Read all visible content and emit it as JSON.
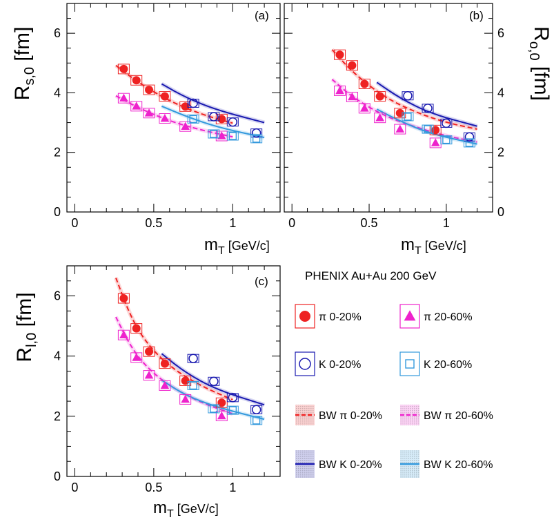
{
  "colors": {
    "pi_central": "#ee2222",
    "pi_peripheral": "#ee22cc",
    "k_central": "#1a1ab0",
    "k_peripheral": "#3399dd"
  },
  "legend": {
    "title": "PHENIX Au+Au 200 GeV",
    "entries": [
      {
        "label": "π  0-20%",
        "marker": "filled-circle",
        "color": "#ee2222"
      },
      {
        "label": "π 20-60%",
        "marker": "filled-triangle",
        "color": "#ee22cc"
      },
      {
        "label": "K  0-20%",
        "marker": "open-circle",
        "color": "#1a1ab0"
      },
      {
        "label": "K 20-60%",
        "marker": "open-square",
        "color": "#3399dd"
      },
      {
        "label": "BW π  0-20%",
        "marker": "dashed-band",
        "color": "#ee2222"
      },
      {
        "label": "BW π 20-60%",
        "marker": "dashed-band",
        "color": "#ee22cc"
      },
      {
        "label": "BW K  0-20%",
        "marker": "solid-band",
        "color": "#1a1ab0"
      },
      {
        "label": "BW K 20-60%",
        "marker": "solid-band",
        "color": "#3399dd"
      }
    ]
  },
  "chart_data": [
    {
      "type": "scatter",
      "panel_label": "(a)",
      "ylabel_main": "R",
      "ylabel_sub": "s,0",
      "ylabel_unit": " [fm]",
      "xlabel_main": "m",
      "xlabel_sub": "T",
      "xlabel_unit": "  [GeV/c]",
      "xlim": [
        -0.05,
        1.3
      ],
      "ylim": [
        0,
        7
      ],
      "xticks": [
        "0",
        "0.5",
        "1"
      ],
      "yticks": [
        "0",
        "2",
        "4",
        "6"
      ],
      "series": [
        {
          "name": "π  0-20%",
          "x": [
            0.31,
            0.39,
            0.47,
            0.57,
            0.7,
            0.93
          ],
          "y": [
            4.8,
            4.42,
            4.1,
            3.88,
            3.54,
            3.12
          ]
        },
        {
          "name": "π 20-60%",
          "x": [
            0.31,
            0.39,
            0.47,
            0.57,
            0.7,
            0.93
          ],
          "y": [
            3.82,
            3.55,
            3.32,
            3.14,
            2.87,
            2.55
          ]
        },
        {
          "name": "K  0-20%",
          "x": [
            0.75,
            0.88,
            1.0,
            1.15
          ],
          "y": [
            3.65,
            3.2,
            3.02,
            2.65
          ]
        },
        {
          "name": "K 20-60%",
          "x": [
            0.75,
            0.88,
            1.0,
            1.15
          ],
          "y": [
            3.12,
            2.62,
            2.55,
            2.46
          ]
        }
      ],
      "fits": [
        {
          "name": "BW π  0-20%",
          "x": [
            0.26,
            0.4,
            0.6,
            0.8,
            1.0
          ],
          "y": [
            4.92,
            4.35,
            3.72,
            3.28,
            2.98
          ]
        },
        {
          "name": "BW π 20-60%",
          "x": [
            0.26,
            0.4,
            0.6,
            0.8,
            1.0
          ],
          "y": [
            3.9,
            3.5,
            3.05,
            2.75,
            2.52
          ]
        },
        {
          "name": "BW K  0-20%",
          "x": [
            0.55,
            0.7,
            0.9,
            1.2
          ],
          "y": [
            4.3,
            3.85,
            3.42,
            3.0
          ]
        },
        {
          "name": "BW K 20-60%",
          "x": [
            0.55,
            0.7,
            0.9,
            1.2
          ],
          "y": [
            3.55,
            3.22,
            2.85,
            2.5
          ]
        }
      ]
    },
    {
      "type": "scatter",
      "panel_label": "(b)",
      "ylabel_main": "R",
      "ylabel_sub": "o,0",
      "ylabel_unit": " [fm]",
      "xlabel_main": "m",
      "xlabel_sub": "T",
      "xlabel_unit": "  [GeV/c]",
      "xlim": [
        -0.05,
        1.3
      ],
      "ylim": [
        0,
        7
      ],
      "xticks": [
        "0",
        "0.5",
        "1"
      ],
      "yticks": [
        "0",
        "2",
        "4",
        "6"
      ],
      "series": [
        {
          "name": "π  0-20%",
          "x": [
            0.31,
            0.39,
            0.47,
            0.57,
            0.7,
            0.93
          ],
          "y": [
            5.28,
            4.92,
            4.3,
            3.88,
            3.32,
            2.75
          ]
        },
        {
          "name": "π 20-60%",
          "x": [
            0.31,
            0.39,
            0.47,
            0.57,
            0.7,
            0.93
          ],
          "y": [
            4.07,
            3.86,
            3.48,
            3.16,
            2.78,
            2.32
          ]
        },
        {
          "name": "K  0-20%",
          "x": [
            0.75,
            0.88,
            1.0,
            1.15
          ],
          "y": [
            3.9,
            3.48,
            2.98,
            2.52
          ]
        },
        {
          "name": "K 20-60%",
          "x": [
            0.75,
            0.88,
            1.0,
            1.15
          ],
          "y": [
            3.2,
            2.78,
            2.42,
            2.32
          ]
        }
      ],
      "fits": [
        {
          "name": "BW π  0-20%",
          "x": [
            0.26,
            0.4,
            0.6,
            0.8,
            1.0,
            1.2
          ],
          "y": [
            5.45,
            4.65,
            3.85,
            3.35,
            3.0,
            2.78
          ]
        },
        {
          "name": "BW π 20-60%",
          "x": [
            0.26,
            0.4,
            0.6,
            0.8,
            1.0,
            1.2
          ],
          "y": [
            4.45,
            3.82,
            3.22,
            2.85,
            2.55,
            2.35
          ]
        },
        {
          "name": "BW K  0-20%",
          "x": [
            0.55,
            0.7,
            0.9,
            1.2
          ],
          "y": [
            4.35,
            3.82,
            3.3,
            2.88
          ]
        },
        {
          "name": "BW K 20-60%",
          "x": [
            0.55,
            0.7,
            0.9,
            1.2
          ],
          "y": [
            3.45,
            3.05,
            2.62,
            2.28
          ]
        }
      ]
    },
    {
      "type": "scatter",
      "panel_label": "(c)",
      "ylabel_main": "R",
      "ylabel_sub": "l,0",
      "ylabel_unit": " [fm]",
      "xlabel_main": "m",
      "xlabel_sub": "T",
      "xlabel_unit": " [GeV/c]",
      "xlim": [
        -0.05,
        1.3
      ],
      "ylim": [
        0,
        7
      ],
      "xticks": [
        "0",
        "0.5",
        "1"
      ],
      "yticks": [
        "0",
        "2",
        "4",
        "6"
      ],
      "series": [
        {
          "name": "π  0-20%",
          "x": [
            0.31,
            0.39,
            0.47,
            0.57,
            0.7,
            0.93
          ],
          "y": [
            5.92,
            4.92,
            4.15,
            3.75,
            3.18,
            2.45
          ]
        },
        {
          "name": "π 20-60%",
          "x": [
            0.31,
            0.39,
            0.47,
            0.57,
            0.7,
            0.93
          ],
          "y": [
            4.7,
            3.95,
            3.36,
            3.02,
            2.56,
            2.01
          ]
        },
        {
          "name": "K  0-20%",
          "x": [
            0.75,
            0.88,
            1.0,
            1.15
          ],
          "y": [
            3.92,
            3.16,
            2.62,
            2.22
          ]
        },
        {
          "name": "K 20-60%",
          "x": [
            0.75,
            0.88,
            1.0,
            1.15
          ],
          "y": [
            3.02,
            2.25,
            2.2,
            1.86
          ]
        }
      ],
      "fits": [
        {
          "name": "BW π  0-20%",
          "x": [
            0.26,
            0.35,
            0.45,
            0.6,
            0.8,
            1.0
          ],
          "y": [
            6.6,
            5.35,
            4.45,
            3.65,
            3.0,
            2.55
          ]
        },
        {
          "name": "BW π 20-60%",
          "x": [
            0.26,
            0.35,
            0.45,
            0.6,
            0.8,
            1.0
          ],
          "y": [
            5.3,
            4.35,
            3.65,
            3.0,
            2.45,
            2.08
          ]
        },
        {
          "name": "BW K  0-20%",
          "x": [
            0.55,
            0.7,
            0.9,
            1.2
          ],
          "y": [
            4.08,
            3.45,
            2.88,
            2.38
          ]
        },
        {
          "name": "BW K 20-60%",
          "x": [
            0.55,
            0.7,
            0.9,
            1.2
          ],
          "y": [
            3.2,
            2.7,
            2.3,
            1.9
          ]
        }
      ]
    }
  ]
}
